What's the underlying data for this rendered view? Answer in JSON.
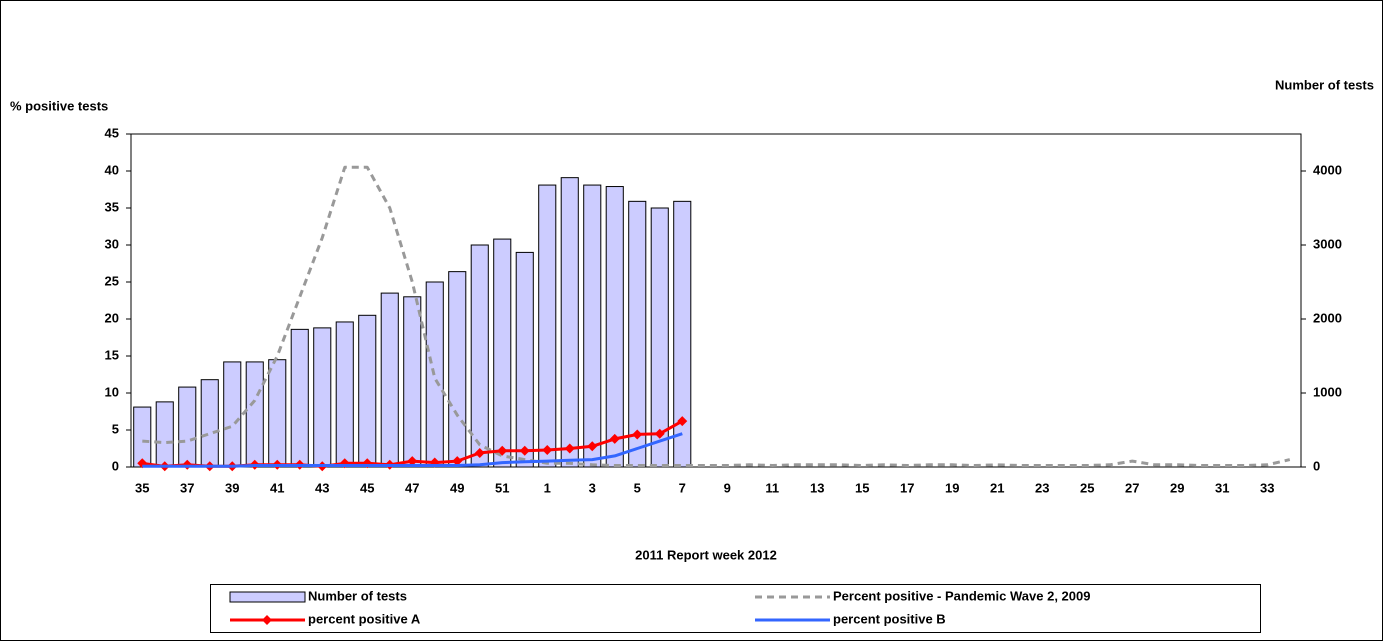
{
  "chart_data": {
    "type": "bar",
    "title_y": "% positive tests",
    "title_y2": "Number of tests",
    "xlabel": "2011  Report week   2012",
    "categories": [
      35,
      null,
      37,
      null,
      39,
      null,
      41,
      null,
      43,
      null,
      45,
      null,
      47,
      null,
      49,
      null,
      51,
      null,
      1,
      null,
      3,
      null,
      5,
      null,
      7,
      null,
      9,
      null,
      11,
      null,
      13,
      null,
      15,
      null,
      17,
      null,
      19,
      null,
      21,
      null,
      23,
      null,
      25,
      null,
      27,
      null,
      29,
      null,
      31,
      null,
      33,
      null
    ],
    "ylim": [
      0,
      45
    ],
    "yticks": [
      0,
      5,
      10,
      15,
      20,
      25,
      30,
      35,
      40,
      45
    ],
    "y2lim": [
      0,
      4500
    ],
    "y2ticks": [
      0,
      1000,
      2000,
      3000,
      4000
    ],
    "series": [
      {
        "name": "Number of tests",
        "type": "bar",
        "axis": "y2",
        "color": "#ccccff",
        "values": [
          810,
          880,
          1080,
          1180,
          1420,
          1420,
          1450,
          1860,
          1880,
          1960,
          2050,
          2350,
          2300,
          2500,
          2640,
          3000,
          3080,
          2900,
          3810,
          3910,
          3810,
          3790,
          3590,
          3500,
          3590,
          null,
          null,
          null,
          null,
          null,
          null,
          null,
          null,
          null,
          null,
          null,
          null,
          null,
          null,
          null,
          null,
          null,
          null,
          null,
          null,
          null,
          null,
          null,
          null,
          null,
          null,
          null
        ]
      },
      {
        "name": "Percent positive - Pandemic Wave 2, 2009",
        "type": "line",
        "color": "#999999",
        "line_style": "dashed",
        "values": [
          3.5,
          3.3,
          3.5,
          4.5,
          5.5,
          9,
          15,
          23,
          31,
          40.5,
          40.5,
          35,
          25,
          12,
          7,
          3,
          1.5,
          1,
          0.5,
          0.5,
          0.3,
          0.2,
          0.2,
          0.2,
          0.2,
          0.2,
          0.2,
          0.3,
          0.2,
          0.3,
          0.3,
          0.3,
          0.2,
          0.3,
          0.2,
          0.3,
          0.3,
          0.2,
          0.3,
          0.2,
          0.2,
          0.2,
          0.2,
          0.3,
          0.8,
          0.3,
          0.3,
          0.2,
          0.2,
          0.2,
          0.3,
          1.0
        ]
      },
      {
        "name": "percent positive A",
        "type": "line",
        "color": "#ff0000",
        "marker": "diamond",
        "values": [
          0.5,
          0.1,
          0.3,
          0.1,
          0.1,
          0.3,
          0.3,
          0.3,
          0.1,
          0.5,
          0.5,
          0.3,
          0.8,
          0.6,
          0.8,
          1.9,
          2.2,
          2.2,
          2.3,
          2.5,
          2.8,
          3.8,
          4.4,
          4.5,
          6.2,
          null,
          null,
          null,
          null,
          null,
          null,
          null,
          null,
          null,
          null,
          null,
          null,
          null,
          null,
          null,
          null,
          null,
          null,
          null,
          null,
          null,
          null,
          null,
          null,
          null,
          null,
          null
        ]
      },
      {
        "name": "percent positive B",
        "type": "line",
        "color": "#3366ff",
        "values": [
          0.1,
          0.1,
          0.1,
          0.1,
          0.1,
          0.2,
          0.2,
          0.2,
          0.2,
          0.2,
          0.2,
          0.2,
          0.2,
          0.2,
          0.2,
          0.3,
          0.6,
          0.7,
          0.8,
          0.9,
          1.0,
          1.5,
          2.5,
          3.5,
          4.5,
          null,
          null,
          null,
          null,
          null,
          null,
          null,
          null,
          null,
          null,
          null,
          null,
          null,
          null,
          null,
          null,
          null,
          null,
          null,
          null,
          null,
          null,
          null,
          null,
          null,
          null,
          null
        ]
      }
    ]
  }
}
